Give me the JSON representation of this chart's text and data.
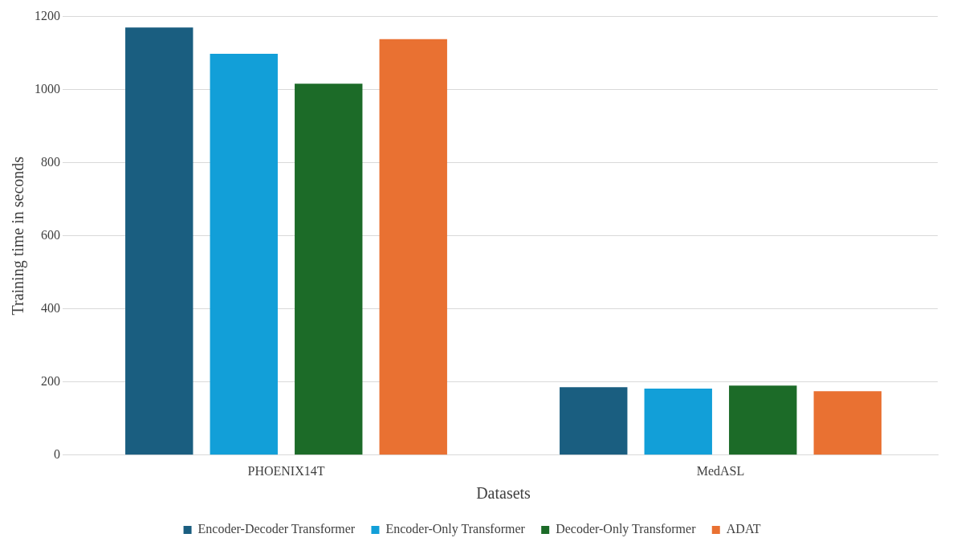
{
  "chart_data": {
    "type": "bar",
    "xlabel": "Datasets",
    "ylabel": "Training time in seconds",
    "categories": [
      "PHOENIX14T",
      "MedASL"
    ],
    "series": [
      {
        "name": "Encoder-Decoder Transformer",
        "color": "#1a5e80",
        "values": [
          1170,
          186
        ]
      },
      {
        "name": "Encoder-Only Transformer",
        "color": "#129fd8",
        "values": [
          1098,
          182
        ]
      },
      {
        "name": "Decoder-Only Transformer",
        "color": "#1c6b28",
        "values": [
          1016,
          190
        ]
      },
      {
        "name": "ADAT",
        "color": "#e97132",
        "values": [
          1138,
          175
        ]
      }
    ],
    "ylim": [
      0,
      1200
    ],
    "yticks": [
      0,
      200,
      400,
      600,
      800,
      1000,
      1200
    ],
    "grid": "y",
    "legend": "bottom"
  }
}
